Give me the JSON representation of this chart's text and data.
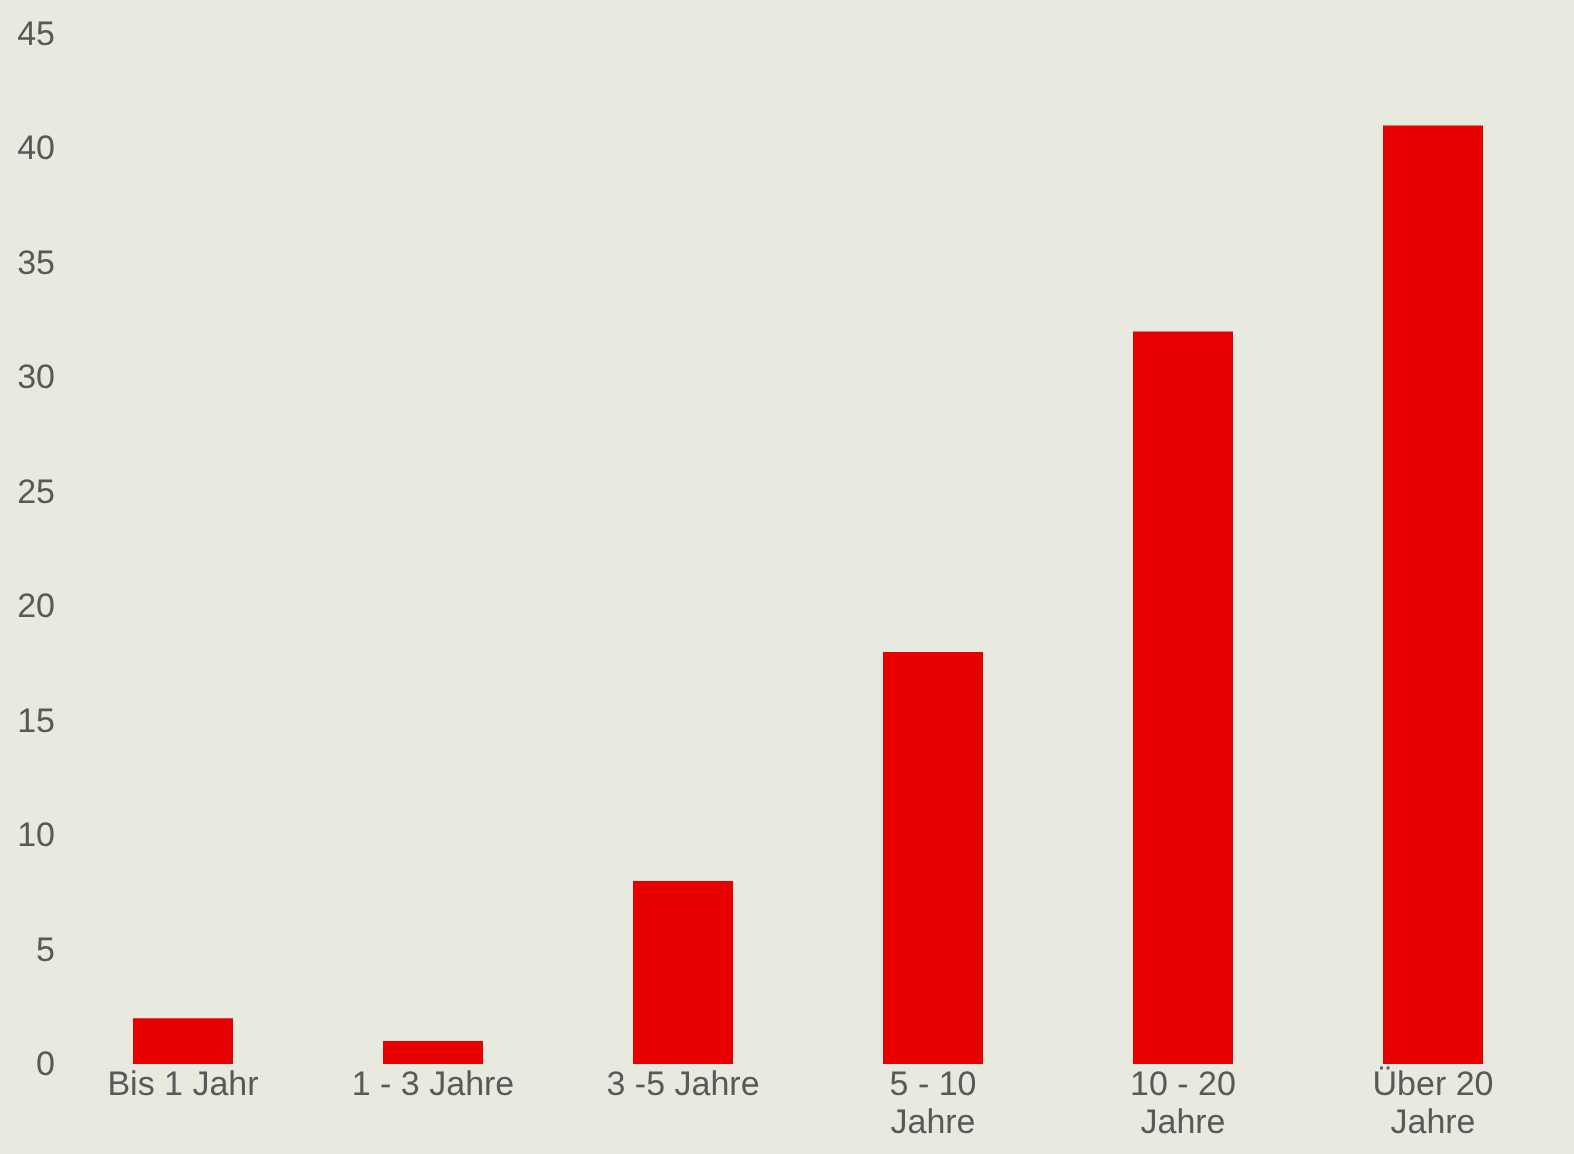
{
  "chart_data": {
    "type": "bar",
    "categories": [
      "Bis 1 Jahr",
      "1 - 3 Jahre",
      "3 -5 Jahre",
      "5 - 10 Jahre",
      "10 - 20 Jahre",
      "Über 20 Jahre"
    ],
    "values": [
      2,
      1,
      8,
      18,
      32,
      41
    ],
    "color": "#e60000",
    "ylim": [
      0,
      45
    ],
    "yticks": [
      0,
      5,
      10,
      15,
      20,
      25,
      30,
      35,
      40,
      45
    ],
    "grid": false
  }
}
